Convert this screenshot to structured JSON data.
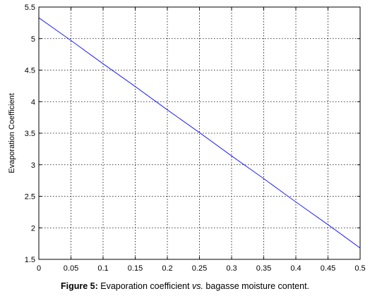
{
  "caption": {
    "label": "Figure 5:",
    "text_before": " Evaporation coefficient ",
    "italic": "vs.",
    "text_after": " bagasse moisture content."
  },
  "chart_data": {
    "type": "line",
    "title": "",
    "xlabel": "",
    "ylabel": "Evaporation Coefficient",
    "xlim": [
      0,
      0.5
    ],
    "ylim": [
      1.5,
      5.5
    ],
    "xticks": [
      0,
      0.05,
      0.1,
      0.15,
      0.2,
      0.25,
      0.3,
      0.35,
      0.4,
      0.45,
      0.5
    ],
    "xtick_labels": [
      "0",
      "0.05",
      "0.1",
      "0.15",
      "0.2",
      "0.25",
      "0.3",
      "0.35",
      "0.4",
      "0.45",
      "0.5"
    ],
    "yticks": [
      1.5,
      2,
      2.5,
      3,
      3.5,
      4,
      4.5,
      5,
      5.5
    ],
    "ytick_labels": [
      "1.5",
      "2",
      "2.5",
      "3",
      "3.5",
      "4",
      "4.5",
      "5",
      "5.5"
    ],
    "grid": true,
    "grid_style": "dotted",
    "legend": "none",
    "series": [
      {
        "color": "#0000ff",
        "x": [
          0,
          0.05,
          0.1,
          0.15,
          0.2,
          0.25,
          0.3,
          0.35,
          0.4,
          0.45,
          0.5
        ],
        "y": [
          5.33,
          4.97,
          4.6,
          4.24,
          3.87,
          3.51,
          3.14,
          2.78,
          2.41,
          2.05,
          1.68
        ]
      }
    ]
  }
}
